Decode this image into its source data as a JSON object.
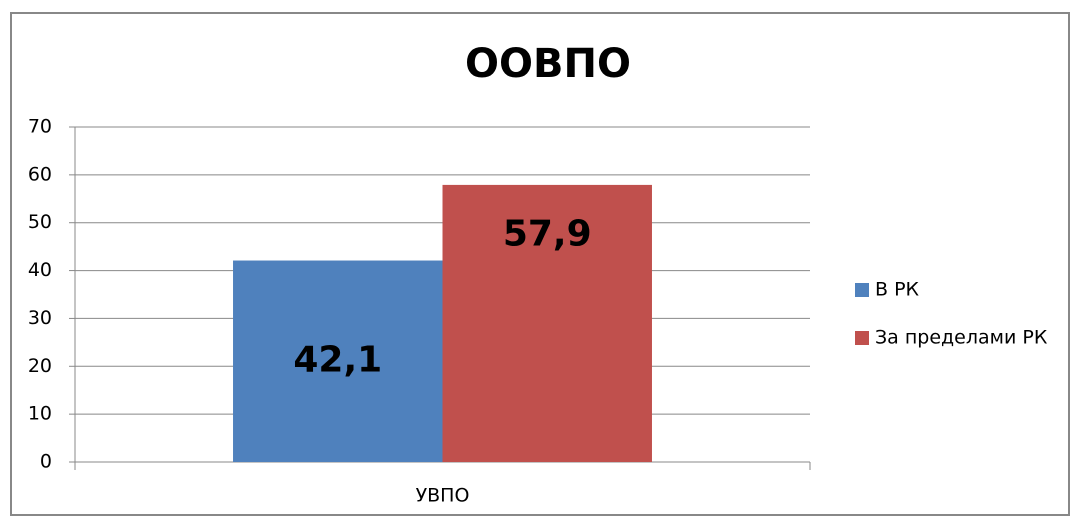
{
  "chart_data": {
    "type": "bar",
    "title": "ООВПО",
    "categories": [
      "УВПО"
    ],
    "series": [
      {
        "name": "В РК",
        "color": "#4f81bd",
        "values": [
          42.1
        ],
        "value_labels": [
          "42,1"
        ]
      },
      {
        "name": "За пределами РК",
        "color": "#c0504d",
        "values": [
          57.9
        ],
        "value_labels": [
          "57,9"
        ]
      }
    ],
    "ylim": [
      0,
      70
    ],
    "yticks": [
      0,
      10,
      20,
      30,
      40,
      50,
      60,
      70
    ],
    "grid": true,
    "legend": "right"
  }
}
